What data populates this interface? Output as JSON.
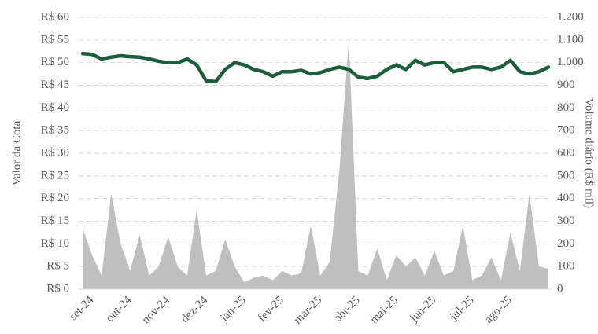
{
  "chart_data": {
    "type": "line",
    "ylabel": "Valor da Cota",
    "y2label": "Volume diário (R$ mil)",
    "categories": [
      null,
      "set-24",
      null,
      null,
      null,
      "out-24",
      null,
      null,
      null,
      "nov-24",
      null,
      null,
      null,
      "dez-24",
      null,
      null,
      null,
      "jan-25",
      null,
      null,
      null,
      "fev-25",
      null,
      null,
      null,
      "mar-25",
      null,
      null,
      null,
      "abr-25",
      null,
      null,
      null,
      "mai-25",
      null,
      null,
      null,
      "jun-25",
      null,
      null,
      null,
      "jul-25",
      null,
      null,
      null,
      "ago-25",
      null,
      null,
      null,
      null
    ],
    "series": [
      {
        "type": "area",
        "axis": "y2",
        "color": "#bfbfbf",
        "values": [
          270,
          150,
          60,
          420,
          200,
          80,
          240,
          60,
          100,
          230,
          100,
          60,
          350,
          60,
          80,
          220,
          100,
          30,
          50,
          60,
          40,
          80,
          60,
          70,
          280,
          60,
          120,
          520,
          1100,
          80,
          60,
          180,
          40,
          150,
          100,
          140,
          60,
          170,
          60,
          80,
          280,
          40,
          60,
          140,
          40,
          250,
          80,
          420,
          100,
          90
        ]
      },
      {
        "type": "line",
        "axis": "y",
        "color": "#1b5e3b",
        "values": [
          52,
          51.8,
          50.8,
          51.2,
          51.5,
          51.3,
          51.2,
          50.8,
          50.3,
          50,
          50,
          50.8,
          49.5,
          46,
          45.8,
          48.5,
          50,
          49.5,
          48.5,
          48,
          47,
          48,
          48,
          48.3,
          47.5,
          47.8,
          48.5,
          49,
          48.5,
          46.8,
          46.5,
          47,
          48.5,
          49.5,
          48.5,
          50.5,
          49.5,
          50,
          50,
          48,
          48.5,
          49,
          49,
          48.5,
          49,
          50.5,
          48,
          47.5,
          48,
          49
        ]
      }
    ],
    "ylim": [
      0,
      60
    ],
    "yticks": [
      {
        "value": 0,
        "label": "R$ 0"
      },
      {
        "value": 5,
        "label": "R$ 5"
      },
      {
        "value": 10,
        "label": "R$ 10"
      },
      {
        "value": 15,
        "label": "R$ 15"
      },
      {
        "value": 20,
        "label": "R$ 20"
      },
      {
        "value": 25,
        "label": "R$ 25"
      },
      {
        "value": 30,
        "label": "R$ 30"
      },
      {
        "value": 35,
        "label": "R$ 35"
      },
      {
        "value": 40,
        "label": "R$ 40"
      },
      {
        "value": 45,
        "label": "R$ 45"
      },
      {
        "value": 50,
        "label": "R$ 50"
      },
      {
        "value": 55,
        "label": "R$ 55"
      },
      {
        "value": 60,
        "label": "R$ 60"
      }
    ],
    "y2lim": [
      0,
      1200
    ],
    "y2ticks": [
      0,
      100,
      200,
      300,
      400,
      500,
      600,
      700,
      800,
      900,
      {
        "value": 1000,
        "label": "1.000"
      },
      {
        "value": 1100,
        "label": "1.100"
      },
      {
        "value": 1200,
        "label": "1.200"
      }
    ],
    "grid": true
  }
}
